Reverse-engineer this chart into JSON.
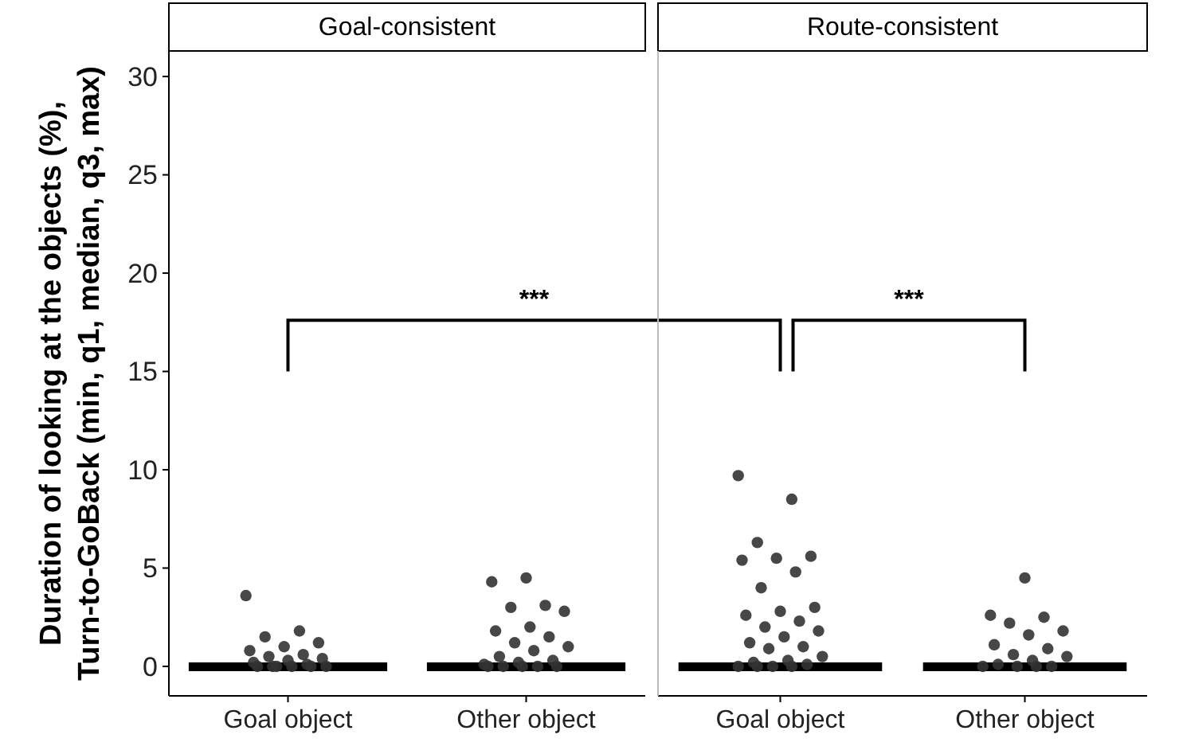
{
  "chart_data": [
    {
      "type": "box",
      "title": "Goal-consistent",
      "ylabel": "Duration of looking at the objects (%),\nTurn-to-GoBack (min, q1, median, q3, max)",
      "categories": [
        "Goal object",
        "Other object"
      ],
      "ylim": [
        -1.5,
        31.3
      ],
      "yticks": [
        0,
        5,
        10,
        15,
        20,
        25,
        30
      ],
      "boxes": [
        {
          "low": 0,
          "q1": 0,
          "median": 0,
          "q3": 0,
          "high": 0
        },
        {
          "low": 0,
          "q1": 0,
          "median": 0,
          "q3": 0,
          "high": 0
        }
      ],
      "series": [
        {
          "type": "scatter",
          "color": "#333333",
          "x": [
            "Goal object",
            "Goal object",
            "Goal object",
            "Goal object",
            "Goal object",
            "Goal object",
            "Goal object",
            "Goal object",
            "Goal object",
            "Goal object",
            "Goal object",
            "Goal object",
            "Goal object",
            "Goal object",
            "Goal object",
            "Goal object",
            "Goal object",
            "Goal object"
          ],
          "values": [
            3.6,
            1.8,
            1.5,
            1.2,
            1.0,
            0.8,
            0.6,
            0.5,
            0.4,
            0.3,
            0.2,
            0.1,
            0,
            0,
            0,
            0,
            0,
            0
          ]
        },
        {
          "type": "scatter",
          "color": "#333333",
          "x": [
            "Other object",
            "Other object",
            "Other object",
            "Other object",
            "Other object",
            "Other object",
            "Other object",
            "Other object",
            "Other object",
            "Other object",
            "Other object",
            "Other object",
            "Other object",
            "Other object",
            "Other object",
            "Other object",
            "Other object",
            "Other object",
            "Other object",
            "Other object"
          ],
          "values": [
            4.5,
            4.3,
            3.1,
            3.0,
            2.8,
            2.0,
            1.8,
            1.5,
            1.2,
            1.0,
            0.8,
            0.5,
            0.3,
            0.2,
            0.1,
            0,
            0,
            0,
            0,
            0
          ]
        }
      ],
      "annotations": [
        "***"
      ]
    },
    {
      "type": "box",
      "title": "Route-consistent",
      "categories": [
        "Goal object",
        "Other object"
      ],
      "ylim": [
        -1.5,
        31.3
      ],
      "tick_labels": "x",
      "boxes": [
        {
          "low": 0,
          "q1": 0,
          "median": 0,
          "q3": 0,
          "high": 0
        },
        {
          "low": 0,
          "q1": 0,
          "median": 0,
          "q3": 0,
          "high": 0
        }
      ],
      "series": [
        {
          "type": "scatter",
          "color": "#333333",
          "x": [
            "Goal object",
            "Goal object",
            "Goal object",
            "Goal object",
            "Goal object",
            "Goal object",
            "Goal object",
            "Goal object",
            "Goal object",
            "Goal object",
            "Goal object",
            "Goal object",
            "Goal object",
            "Goal object",
            "Goal object",
            "Goal object",
            "Goal object",
            "Goal object",
            "Goal object",
            "Goal object",
            "Goal object",
            "Goal object",
            "Goal object",
            "Goal object",
            "Goal object",
            "Goal object"
          ],
          "values": [
            9.7,
            8.5,
            6.3,
            5.6,
            5.5,
            5.4,
            4.8,
            4.0,
            3.0,
            2.8,
            2.6,
            2.3,
            2.0,
            1.8,
            1.5,
            1.2,
            1.0,
            0.9,
            0.5,
            0.3,
            0.2,
            0.1,
            0,
            0,
            0,
            0
          ]
        },
        {
          "type": "scatter",
          "color": "#333333",
          "x": [
            "Other object",
            "Other object",
            "Other object",
            "Other object",
            "Other object",
            "Other object",
            "Other object",
            "Other object",
            "Other object",
            "Other object",
            "Other object",
            "Other object",
            "Other object",
            "Other object",
            "Other object",
            "Other object"
          ],
          "values": [
            4.5,
            2.6,
            2.5,
            2.2,
            1.8,
            1.6,
            1.1,
            0.9,
            0.6,
            0.5,
            0.3,
            0.1,
            0,
            0,
            0,
            0
          ]
        }
      ],
      "annotations": [
        "***"
      ]
    }
  ]
}
